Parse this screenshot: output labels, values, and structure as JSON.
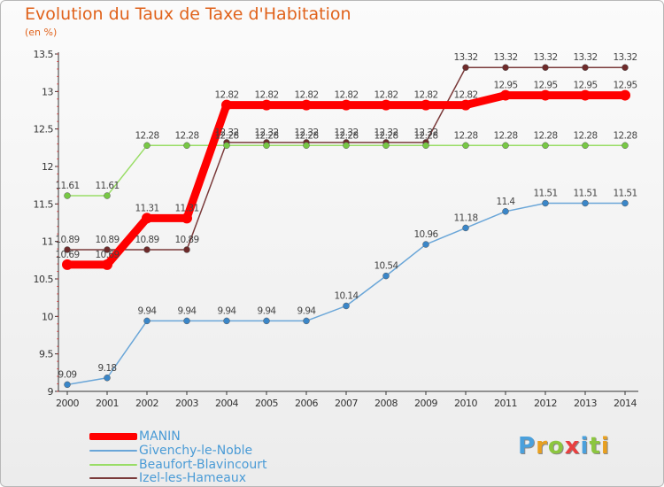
{
  "header": {
    "title": "Evolution du Taux de Taxe d'Habitation",
    "subtitle": "(en %)"
  },
  "chart_data": {
    "type": "line",
    "title": "Evolution du Taux de Taxe d'Habitation",
    "ylabel": "(en %)",
    "xlabel": "",
    "categories": [
      "2000",
      "2001",
      "2002",
      "2003",
      "2004",
      "2005",
      "2006",
      "2007",
      "2008",
      "2009",
      "2010",
      "2011",
      "2012",
      "2013",
      "2014"
    ],
    "ylim": [
      9,
      13.5
    ],
    "yticks": [
      "9",
      "9.5",
      "10",
      "10.5",
      "11",
      "11.5",
      "12",
      "12.5",
      "13",
      "13.5"
    ],
    "series": [
      {
        "name": "MANIN",
        "color": "#ff0000",
        "marker": "#ff0000",
        "thick": true,
        "values": [
          10.69,
          10.69,
          11.31,
          11.31,
          12.82,
          12.82,
          12.82,
          12.82,
          12.82,
          12.82,
          12.82,
          12.95,
          12.95,
          12.95,
          12.95
        ]
      },
      {
        "name": "Givenchy-le-Noble",
        "color": "#6aa6d8",
        "marker": "#3a86c8",
        "thick": false,
        "values": [
          9.09,
          9.18,
          9.94,
          9.94,
          9.94,
          9.94,
          9.94,
          10.14,
          10.54,
          10.96,
          11.18,
          11.4,
          11.51,
          11.51,
          11.51
        ]
      },
      {
        "name": "Beaufort-Blavincourt",
        "color": "#99dd66",
        "marker": "#77c844",
        "thick": false,
        "values": [
          11.61,
          11.61,
          12.28,
          12.28,
          12.28,
          12.28,
          12.28,
          12.28,
          12.28,
          12.28,
          12.28,
          12.28,
          12.28,
          12.28,
          12.28
        ]
      },
      {
        "name": "Izel-les-Hameaux",
        "color": "#7a3a3a",
        "marker": "#6e2a2a",
        "thick": false,
        "values": [
          10.89,
          10.89,
          10.89,
          10.89,
          12.32,
          12.32,
          12.32,
          12.32,
          12.32,
          12.32,
          13.32,
          13.32,
          13.32,
          13.32,
          13.32
        ]
      }
    ],
    "grid": false,
    "legend": "bottom-left"
  },
  "legend": [
    {
      "label": "MANIN",
      "color": "#ff0000"
    },
    {
      "label": "Givenchy-le-Noble",
      "color": "#6aa6d8"
    },
    {
      "label": "Beaufort-Blavincourt",
      "color": "#99dd66"
    },
    {
      "label": "Izel-les-Hameaux",
      "color": "#7a3a3a"
    }
  ],
  "logo": {
    "letters": [
      "P",
      "r",
      "o",
      "x",
      "i",
      "t",
      "i"
    ],
    "colors": [
      "#4aa0dc",
      "#e8a020",
      "#8cc63f",
      "#e84040",
      "#4aa0dc",
      "#8cc63f",
      "#e8a020"
    ]
  }
}
